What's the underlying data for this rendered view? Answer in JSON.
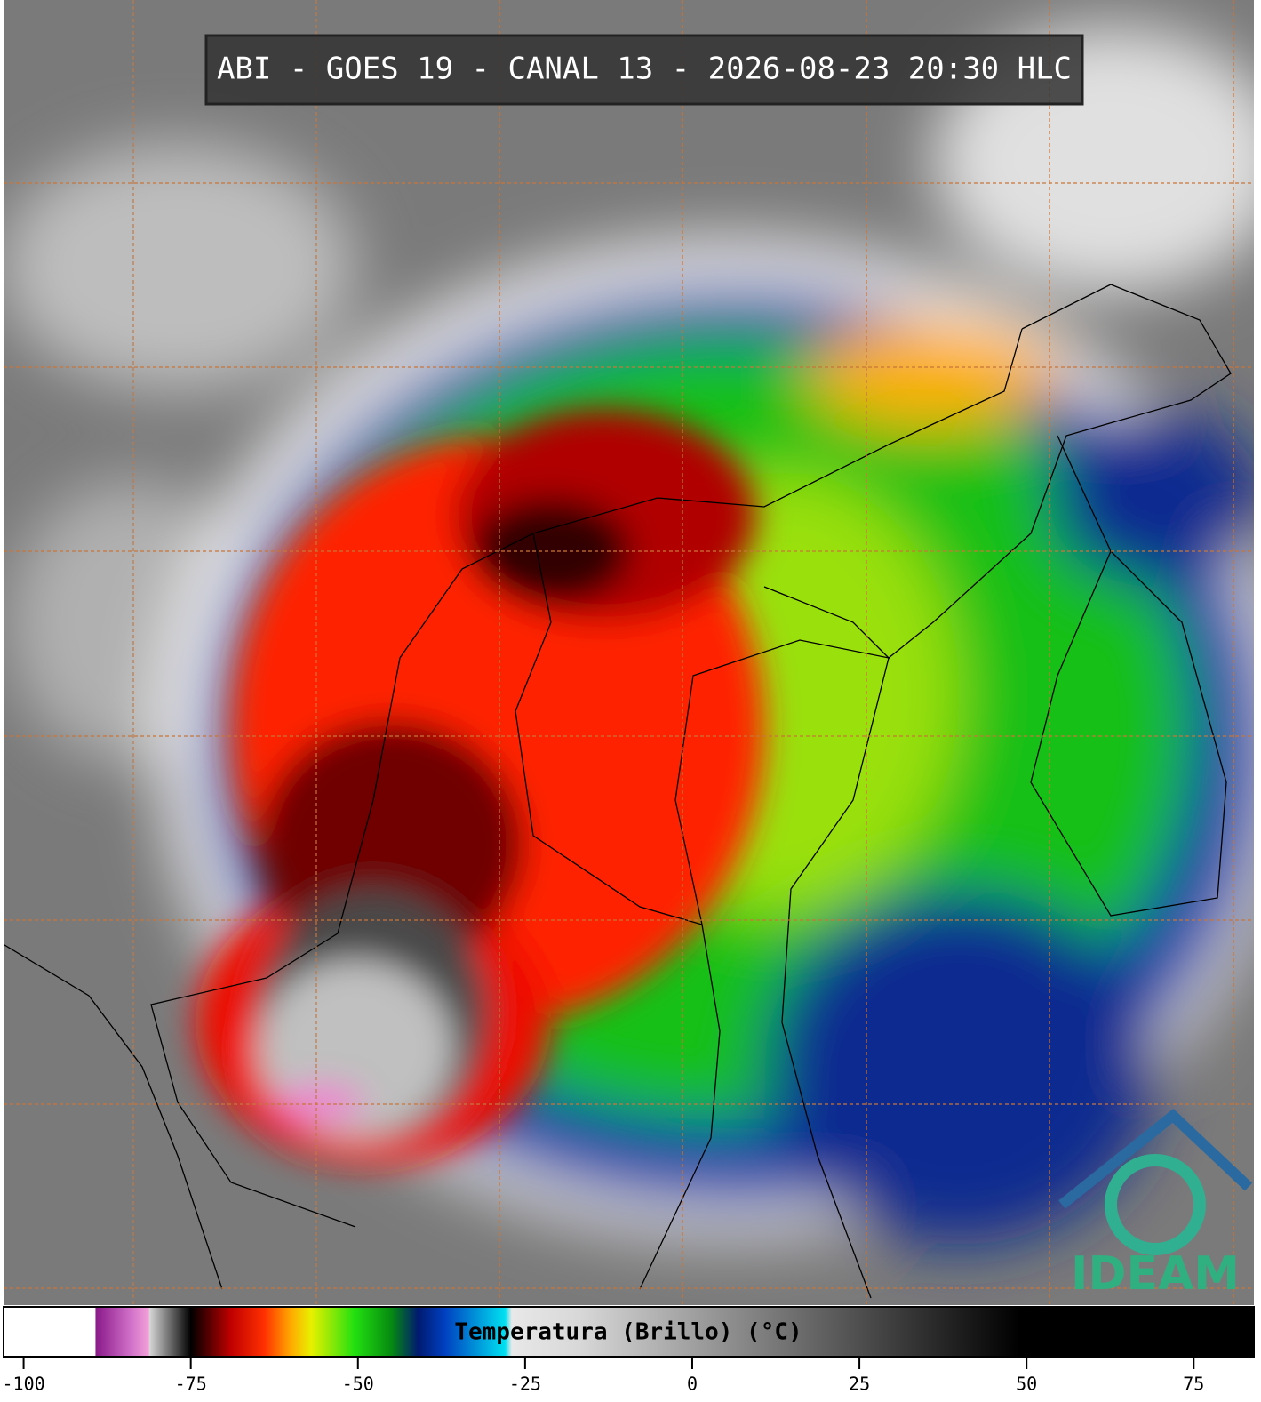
{
  "title": "ABI - GOES 19 - CANAL 13 - 2026-08-23 20:30 HLC",
  "logo": "IDEAM",
  "colorbar": {
    "label": "Temperatura (Brillo) (°C)",
    "lim": [
      -103,
      84
    ],
    "ticks": [
      -100,
      -75,
      -50,
      -25,
      0,
      25,
      50,
      75
    ],
    "stops": [
      [
        -103,
        "#ffffff"
      ],
      [
        -89.3,
        "#ffffff"
      ],
      [
        -89.2,
        "#8a1a8a"
      ],
      [
        -84,
        "#d070c8"
      ],
      [
        -81.3,
        "#f2a0d8"
      ],
      [
        -81.2,
        "#d8d8d8"
      ],
      [
        -75,
        "#000000"
      ],
      [
        -69,
        "#c00000"
      ],
      [
        -64,
        "#ff3000"
      ],
      [
        -60,
        "#ffaa00"
      ],
      [
        -57,
        "#e8f000"
      ],
      [
        -50.5,
        "#22e010"
      ],
      [
        -45,
        "#068a10"
      ],
      [
        -41,
        "#001a70"
      ],
      [
        -37,
        "#0040c0"
      ],
      [
        -28,
        "#00e0f0"
      ],
      [
        -27,
        "#e8e8e8"
      ],
      [
        -17,
        "#d8d8d8"
      ],
      [
        49,
        "#000000"
      ],
      [
        84,
        "#000000"
      ]
    ]
  }
}
